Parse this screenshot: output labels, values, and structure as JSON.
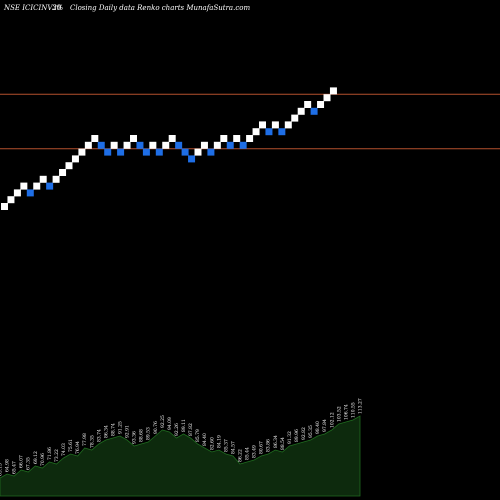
{
  "header": {
    "symbol": "NSE ICICINV20",
    "box_size": "3%",
    "subtitle": "Closing Daily data  Renko  charts MunafaSutra.com"
  },
  "colors": {
    "background": "#000000",
    "up_brick": "#ffffff",
    "down_brick": "#1e6ee6",
    "level_line": "#b4502d",
    "volume_fill": "#0d2a0d",
    "volume_stroke": "#1f6b1f"
  },
  "chart_data": {
    "type": "renko",
    "title": "NSE ICICINV20",
    "subtitle": "Closing Daily data  Renko  charts MunafaSutra.com",
    "bricks": [
      {
        "dir": "up",
        "level": 0
      },
      {
        "dir": "up",
        "level": 1
      },
      {
        "dir": "up",
        "level": 2
      },
      {
        "dir": "up",
        "level": 3
      },
      {
        "dir": "down",
        "level": 2
      },
      {
        "dir": "up",
        "level": 3
      },
      {
        "dir": "up",
        "level": 4
      },
      {
        "dir": "down",
        "level": 3
      },
      {
        "dir": "up",
        "level": 4
      },
      {
        "dir": "up",
        "level": 5
      },
      {
        "dir": "up",
        "level": 6
      },
      {
        "dir": "up",
        "level": 7
      },
      {
        "dir": "up",
        "level": 8
      },
      {
        "dir": "up",
        "level": 9
      },
      {
        "dir": "up",
        "level": 10
      },
      {
        "dir": "down",
        "level": 9
      },
      {
        "dir": "down",
        "level": 8
      },
      {
        "dir": "up",
        "level": 9
      },
      {
        "dir": "down",
        "level": 8
      },
      {
        "dir": "up",
        "level": 9
      },
      {
        "dir": "up",
        "level": 10
      },
      {
        "dir": "down",
        "level": 9
      },
      {
        "dir": "down",
        "level": 8
      },
      {
        "dir": "up",
        "level": 9
      },
      {
        "dir": "down",
        "level": 8
      },
      {
        "dir": "up",
        "level": 9
      },
      {
        "dir": "up",
        "level": 10
      },
      {
        "dir": "down",
        "level": 9
      },
      {
        "dir": "down",
        "level": 8
      },
      {
        "dir": "down",
        "level": 7
      },
      {
        "dir": "up",
        "level": 8
      },
      {
        "dir": "up",
        "level": 9
      },
      {
        "dir": "down",
        "level": 8
      },
      {
        "dir": "up",
        "level": 9
      },
      {
        "dir": "up",
        "level": 10
      },
      {
        "dir": "down",
        "level": 9
      },
      {
        "dir": "up",
        "level": 10
      },
      {
        "dir": "down",
        "level": 9
      },
      {
        "dir": "up",
        "level": 10
      },
      {
        "dir": "up",
        "level": 11
      },
      {
        "dir": "up",
        "level": 12
      },
      {
        "dir": "down",
        "level": 11
      },
      {
        "dir": "up",
        "level": 12
      },
      {
        "dir": "down",
        "level": 11
      },
      {
        "dir": "up",
        "level": 12
      },
      {
        "dir": "up",
        "level": 13
      },
      {
        "dir": "up",
        "level": 14
      },
      {
        "dir": "up",
        "level": 15
      },
      {
        "dir": "down",
        "level": 14
      },
      {
        "dir": "up",
        "level": 15
      },
      {
        "dir": "up",
        "level": 16
      },
      {
        "dir": "up",
        "level": 17
      }
    ],
    "resistance_levels": [
      16.5,
      8.5
    ],
    "volume": {
      "values": [
        18,
        22,
        20,
        26,
        24,
        30,
        28,
        34,
        32,
        38,
        42,
        40,
        48,
        46,
        52,
        56,
        58,
        60,
        56,
        50,
        52,
        54,
        60,
        66,
        64,
        58,
        62,
        58,
        52,
        48,
        44,
        46,
        42,
        40,
        32,
        34,
        36,
        40,
        42,
        46,
        44,
        50,
        52,
        54,
        56,
        60,
        62,
        66,
        72,
        74,
        76,
        80
      ],
      "labels": [
        "63.15",
        "64.98",
        "65.47",
        "66.07",
        "67.35",
        "69.12",
        "70.96",
        "71.86",
        "73.22",
        "74.03",
        "75.61",
        "76.94",
        "77.98",
        "78.35",
        "83.74",
        "86.34",
        "88.74",
        "91.25",
        "92.91",
        "93.36",
        "88.68",
        "89.53",
        "90.76",
        "92.25",
        "94.09",
        "92.26",
        "89.11",
        "87.82",
        "85.79",
        "84.40",
        "82.60",
        "84.19",
        "85.37",
        "84.57",
        "86.22",
        "85.44",
        "83.49",
        "80.67",
        "83.86",
        "86.34",
        "88.54",
        "91.32",
        "89.96",
        "92.82",
        "95.35",
        "98.40",
        "97.84",
        "102.12",
        "103.52",
        "106.74",
        "110.55",
        "113.27"
      ]
    }
  }
}
